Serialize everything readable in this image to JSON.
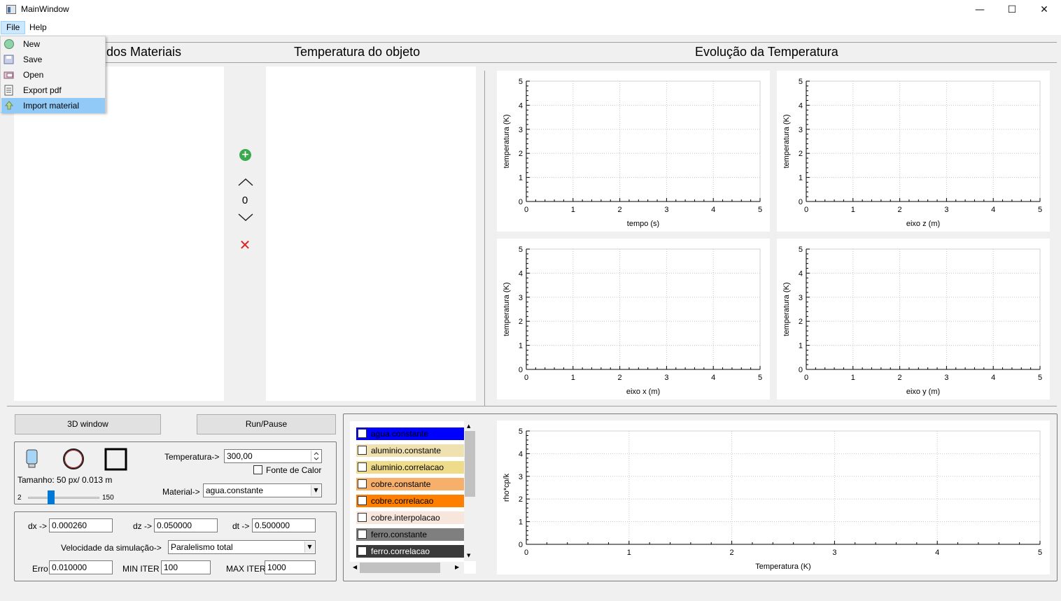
{
  "window": {
    "title": "MainWindow",
    "minimize": "—",
    "maximize": "☐",
    "close": "✕"
  },
  "menubar": {
    "file": "File",
    "help": "Help"
  },
  "file_menu": [
    {
      "label": "New",
      "icon": "new-icon"
    },
    {
      "label": "Save",
      "icon": "save-icon"
    },
    {
      "label": "Open",
      "icon": "open-icon"
    },
    {
      "label": "Export pdf",
      "icon": "export-pdf-icon"
    },
    {
      "label": "Import material",
      "icon": "import-icon"
    }
  ],
  "headings": {
    "materials": "o dos Materiais",
    "object_temp": "Temperatura do objeto",
    "evolution": "Evolução da Temperatura"
  },
  "layer_controls": {
    "value": "0",
    "add": "+",
    "remove": "✕"
  },
  "plots": [
    {
      "ylabel": "temperatura (K)",
      "xlabel": "tempo (s)",
      "xticks": [
        "0",
        "1",
        "2",
        "3",
        "4",
        "5"
      ],
      "yticks": [
        "0",
        "1",
        "2",
        "3",
        "4",
        "5"
      ]
    },
    {
      "ylabel": "temperatura (K)",
      "xlabel": "eixo z (m)",
      "xticks": [
        "0",
        "1",
        "2",
        "3",
        "4",
        "5"
      ],
      "yticks": [
        "0",
        "1",
        "2",
        "3",
        "4",
        "5"
      ]
    },
    {
      "ylabel": "temperatura (K)",
      "xlabel": "eixo x (m)",
      "xticks": [
        "0",
        "1",
        "2",
        "3",
        "4",
        "5"
      ],
      "yticks": [
        "0",
        "1",
        "2",
        "3",
        "4",
        "5"
      ]
    },
    {
      "ylabel": "temperatura (K)",
      "xlabel": "eixo y (m)",
      "xticks": [
        "0",
        "1",
        "2",
        "3",
        "4",
        "5"
      ],
      "yticks": [
        "0",
        "1",
        "2",
        "3",
        "4",
        "5"
      ]
    },
    {
      "ylabel": "rho*cp/k",
      "xlabel": "Temperatura (K)",
      "xticks": [
        "0",
        "1",
        "2",
        "3",
        "4",
        "5"
      ],
      "yticks": [
        "0",
        "1",
        "2",
        "3",
        "4",
        "5"
      ]
    }
  ],
  "buttons": {
    "window3d": "3D window",
    "run_pause": "Run/Pause"
  },
  "draw_tools": {
    "size_label": "Tamanho: 50 px/ 0.013 m",
    "slider_min": "2",
    "slider_max": "150",
    "slider_value": 50,
    "temperature_label": "Temperatura->",
    "temperature_value": "300,00",
    "heat_source_label": "Fonte de Calor",
    "material_label": "Material->",
    "material_value": "agua.constante"
  },
  "params": {
    "dx_label": "dx ->",
    "dx": "0.000260",
    "dz_label": "dz ->",
    "dz": "0.050000",
    "dt_label": "dt ->",
    "dt": "0.500000",
    "speed_label": "Velocidade da simulação->",
    "speed": "Paralelismo total",
    "erro_label": "Erro",
    "erro": "0.010000",
    "min_iter_label": "MIN ITER",
    "min_iter": "100",
    "max_iter_label": "MAX ITER",
    "max_iter": "1000"
  },
  "materials_legend": [
    {
      "label": "agua.constante",
      "color": "#0000ff",
      "text_color": "#000000"
    },
    {
      "label": "aluminio.constante",
      "color": "#f0e2b0",
      "text_color": "#000000"
    },
    {
      "label": "aluminio.correlacao",
      "color": "#efdc8a",
      "text_color": "#000000"
    },
    {
      "label": "cobre.constante",
      "color": "#f7b06c",
      "text_color": "#000000"
    },
    {
      "label": "cobre.correlacao",
      "color": "#ff7f00",
      "text_color": "#000000"
    },
    {
      "label": "cobre.interpolacao",
      "color": "#f7e6dc",
      "text_color": "#000000"
    },
    {
      "label": "ferro.constante",
      "color": "#7f7f7f",
      "text_color": "#000000"
    },
    {
      "label": "ferro.correlacao",
      "color": "#3a3a3a",
      "text_color": "#ffffff"
    }
  ]
}
